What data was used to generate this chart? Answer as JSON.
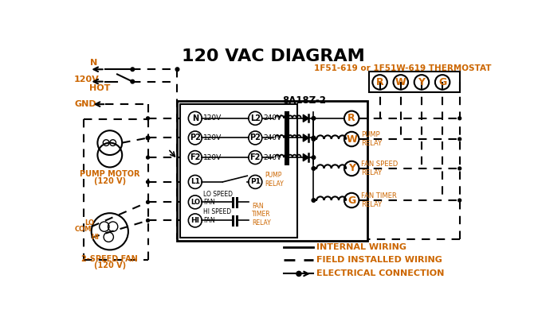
{
  "title": "120 VAC DIAGRAM",
  "title_color": "#000000",
  "title_fontsize": 16,
  "bg_color": "#ffffff",
  "line_color": "#000000",
  "orange_color": "#cc6600",
  "thermostat_label": "1F51-619 or 1F51W-619 THERMOSTAT",
  "control_board_label": "8A18Z-2",
  "legend_items": [
    {
      "label": "INTERNAL WIRING",
      "style": "solid"
    },
    {
      "label": "FIELD INSTALLED WIRING",
      "style": "dashed"
    },
    {
      "label": "ELECTRICAL CONNECTION",
      "style": "dot"
    }
  ],
  "terminals_rwyg": [
    "R",
    "W",
    "Y",
    "G"
  ],
  "node_labels_left": [
    "N",
    "P2",
    "F2"
  ],
  "node_labels_right": [
    "L2",
    "P2",
    "F2"
  ],
  "voltages_left_col": [
    "120V",
    "120V",
    "120V"
  ],
  "voltages_right_col": [
    "240V",
    "240V",
    "240V"
  ],
  "relay_circle_labels": [
    "W",
    "Y",
    "G"
  ],
  "relay_text_labels": [
    "PUMP\nRELAY",
    "FAN SPEED\nRELAY",
    "FAN TIMER\nRELAY"
  ]
}
